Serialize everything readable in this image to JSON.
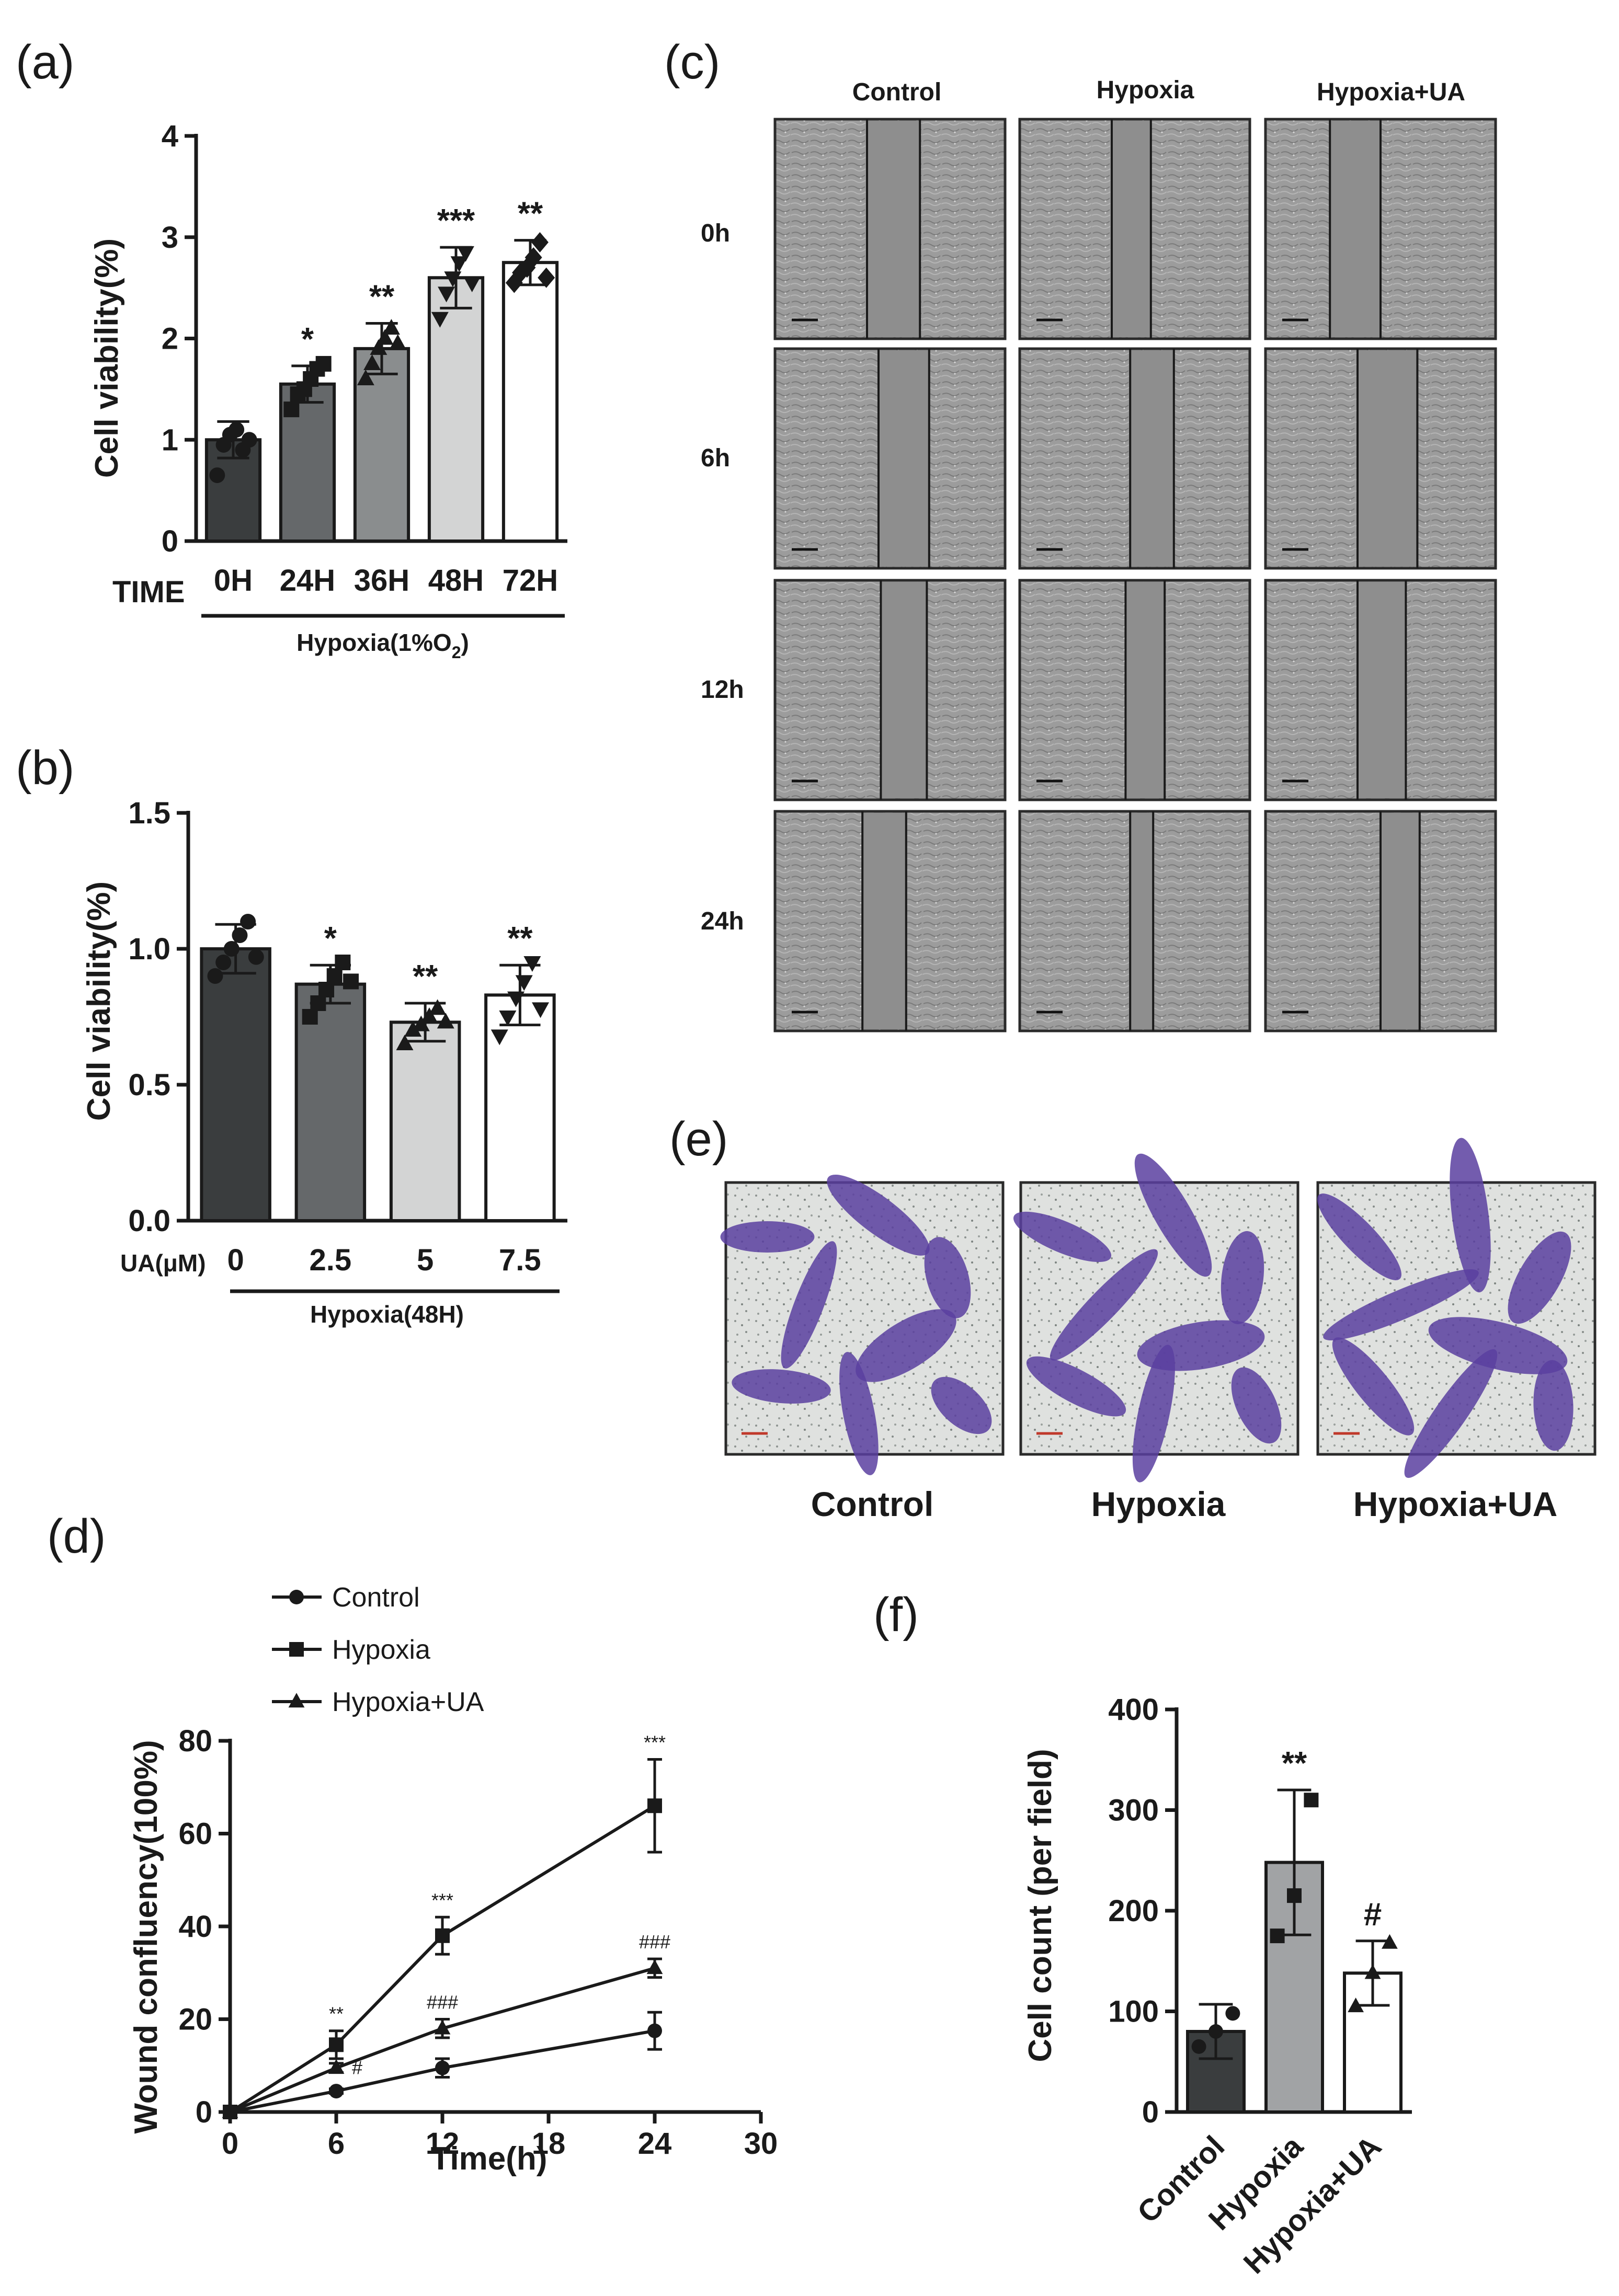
{
  "panels": {
    "a": {
      "label": "(a)",
      "chart_data": {
        "type": "bar",
        "ylabel": "Cell viability(%)",
        "xlabel_prefix": "TIME",
        "group_label": "Hypoxia(1%O",
        "group_label_sub": "2",
        "group_label_end": ")",
        "categories": [
          "0H",
          "24H",
          "36H",
          "48H",
          "72H"
        ],
        "values": [
          1.0,
          1.55,
          1.9,
          2.6,
          2.75
        ],
        "errors": [
          0.18,
          0.18,
          0.25,
          0.3,
          0.22
        ],
        "points": [
          [
            0.65,
            0.95,
            1.05,
            1.1,
            0.9,
            1.0
          ],
          [
            1.3,
            1.45,
            1.5,
            1.6,
            1.7,
            1.75
          ],
          [
            1.6,
            1.75,
            1.9,
            2.0,
            2.1,
            1.95
          ],
          [
            2.2,
            2.45,
            2.6,
            2.75,
            2.85,
            2.55
          ],
          [
            2.55,
            2.65,
            2.7,
            2.8,
            2.95,
            2.6
          ]
        ],
        "markers": [
          "circle",
          "square",
          "triangle",
          "triangle-down",
          "diamond"
        ],
        "significance": [
          "",
          "*",
          "**",
          "***",
          "**"
        ],
        "colors": [
          "#3a3d3e",
          "#65686a",
          "#8a8d8e",
          "#d3d4d4",
          "#ffffff"
        ],
        "ylim": [
          0,
          4
        ],
        "yticks": [
          "0",
          "1",
          "2",
          "3",
          "4"
        ]
      }
    },
    "b": {
      "label": "(b)",
      "chart_data": {
        "type": "bar",
        "ylabel": "Cell viability(%)",
        "xlabel_prefix": "UA(μM)",
        "group_label": "Hypoxia(48H)",
        "categories": [
          "0",
          "2.5",
          "5",
          "7.5"
        ],
        "values": [
          1.0,
          0.87,
          0.73,
          0.83
        ],
        "errors": [
          0.09,
          0.07,
          0.07,
          0.11
        ],
        "points": [
          [
            0.9,
            0.95,
            1.0,
            1.05,
            1.1,
            0.97
          ],
          [
            0.75,
            0.8,
            0.85,
            0.9,
            0.95,
            0.88
          ],
          [
            0.65,
            0.7,
            0.72,
            0.75,
            0.78,
            0.73
          ],
          [
            0.68,
            0.75,
            0.82,
            0.88,
            0.95,
            0.78
          ]
        ],
        "markers": [
          "circle",
          "square",
          "triangle",
          "triangle-down"
        ],
        "significance": [
          "",
          "*",
          "**",
          "**"
        ],
        "colors": [
          "#3a3d3e",
          "#65686a",
          "#d3d4d4",
          "#ffffff"
        ],
        "ylim": [
          0,
          1.5
        ],
        "yticks": [
          "0.0",
          "0.5",
          "1.0",
          "1.5"
        ]
      }
    },
    "c": {
      "label": "(c)",
      "columns": [
        "Control",
        "Hypoxia",
        "Hypoxia+UA"
      ],
      "rows": [
        "0h",
        "6h",
        "12h",
        "24h"
      ]
    },
    "d": {
      "label": "(d)",
      "chart_data": {
        "type": "line",
        "xlabel": "Time(h)",
        "ylabel": "Wound confluency(100%)",
        "x": [
          0,
          6,
          12,
          24
        ],
        "xlim": [
          0,
          30
        ],
        "xticks": [
          "0",
          "6",
          "12",
          "18",
          "24",
          "30"
        ],
        "ylim": [
          0,
          80
        ],
        "yticks": [
          "0",
          "20",
          "40",
          "60",
          "80"
        ],
        "series": [
          {
            "name": "Control",
            "marker": "circle",
            "values": [
              0,
              4.5,
              9.5,
              17.5
            ],
            "errors": [
              0,
              0.5,
              2,
              4
            ],
            "annotations": [
              "",
              "",
              "",
              ""
            ]
          },
          {
            "name": "Hypoxia",
            "marker": "square",
            "values": [
              0,
              14.5,
              38,
              66
            ],
            "errors": [
              0,
              3,
              4,
              10
            ],
            "annotations": [
              "",
              "**",
              "***",
              "***"
            ]
          },
          {
            "name": "Hypoxia+UA",
            "marker": "triangle",
            "values": [
              0,
              9.5,
              18,
              31
            ],
            "errors": [
              0,
              1,
              2,
              2
            ],
            "annotations": [
              "",
              "#",
              "###",
              "###"
            ]
          }
        ]
      }
    },
    "e": {
      "label": "(e)",
      "captions": [
        "Control",
        "Hypoxia",
        "Hypoxia+UA"
      ]
    },
    "f": {
      "label": "(f)",
      "chart_data": {
        "type": "bar",
        "ylabel": "Cell count (per field)",
        "categories": [
          "Control",
          "Hypoxia",
          "Hypoxia+UA"
        ],
        "values": [
          80,
          248,
          138
        ],
        "errors": [
          27,
          72,
          32
        ],
        "points": [
          [
            65,
            80,
            98
          ],
          [
            175,
            215,
            310
          ],
          [
            105,
            138,
            168
          ]
        ],
        "markers": [
          "circle",
          "square",
          "triangle"
        ],
        "significance": [
          "",
          "**",
          "#"
        ],
        "colors": [
          "#3a3d3e",
          "#a1a3a5",
          "#ffffff"
        ],
        "ylim": [
          0,
          400
        ],
        "yticks": [
          "0",
          "100",
          "200",
          "300",
          "400"
        ]
      }
    }
  }
}
